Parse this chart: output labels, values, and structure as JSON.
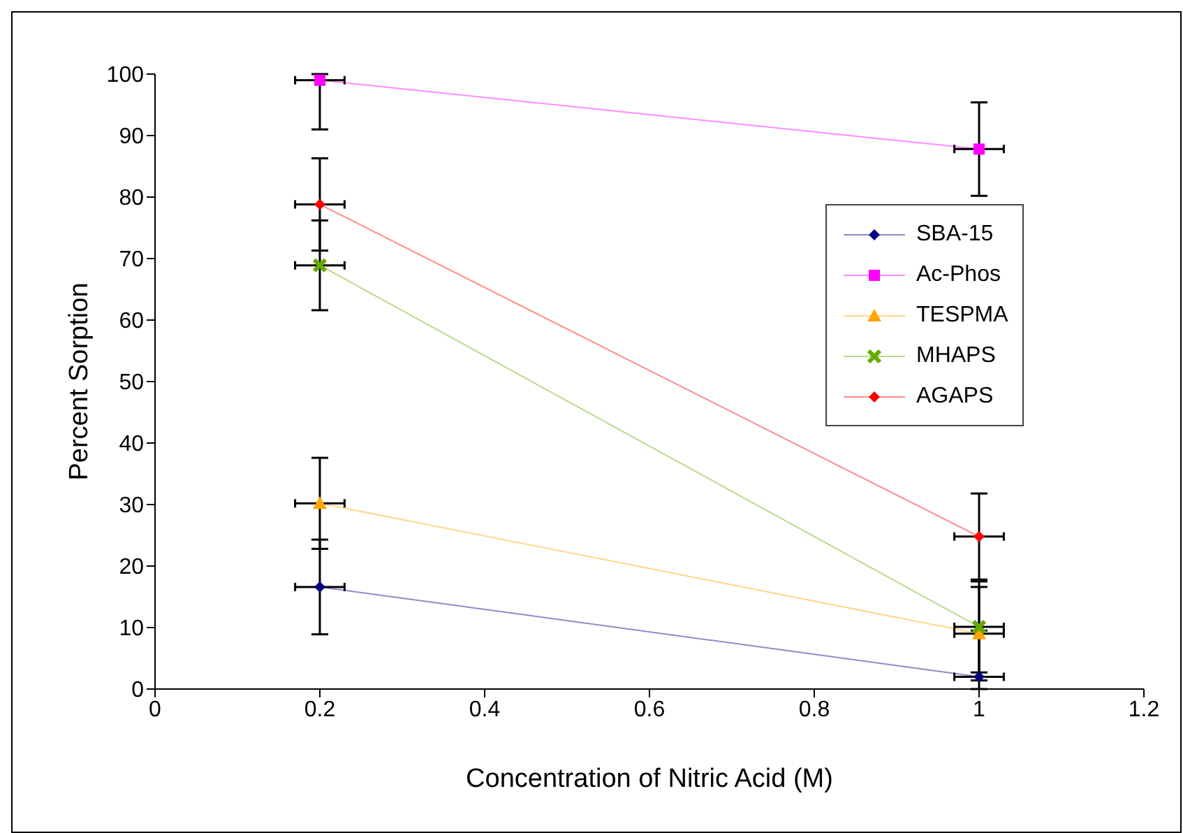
{
  "chart_data": {
    "type": "line",
    "xlabel": "Concentration of Nitric Acid (M)",
    "ylabel": "Percent Sorption",
    "x": [
      0.2,
      1
    ],
    "xlim": [
      0,
      1.2
    ],
    "xticks": [
      0,
      0.2,
      0.4,
      0.6,
      0.8,
      1,
      1.2
    ],
    "ylim": [
      0,
      100
    ],
    "yticks": [
      0,
      10,
      20,
      30,
      40,
      50,
      60,
      70,
      80,
      90,
      100
    ],
    "grid": false,
    "legend": "right",
    "series": [
      {
        "name": "SBA-15",
        "color": "#000080",
        "marker": "diamond",
        "values": [
          16.6,
          2
        ],
        "errors": [
          7.7,
          [
            0,
            9.5
          ]
        ],
        "xerrors": [
          0.03,
          0.03
        ]
      },
      {
        "name": "Ac-Phos",
        "color": "#ff00ff",
        "marker": "square",
        "values": [
          99,
          87.8
        ],
        "errors": [
          [
            91,
            100
          ],
          7.6
        ],
        "xerrors": [
          0.03,
          0.03
        ]
      },
      {
        "name": "TESPMA",
        "color": "#ffa500",
        "marker": "triangle",
        "values": [
          30.2,
          9
        ],
        "errors": [
          7.4,
          7.6
        ],
        "xerrors": [
          0.03,
          0.03
        ]
      },
      {
        "name": "MHAPS",
        "color": "#66aa00",
        "marker": "cross",
        "values": [
          68.9,
          10.1
        ],
        "errors": [
          7.3,
          7.4
        ],
        "xerrors": [
          0.03,
          0.03
        ]
      },
      {
        "name": "AGAPS",
        "color": "#ff0000",
        "marker": "diamond",
        "values": [
          78.8,
          24.8
        ],
        "errors": [
          7.5,
          7
        ],
        "xerrors": [
          0.03,
          0.03
        ]
      }
    ]
  }
}
